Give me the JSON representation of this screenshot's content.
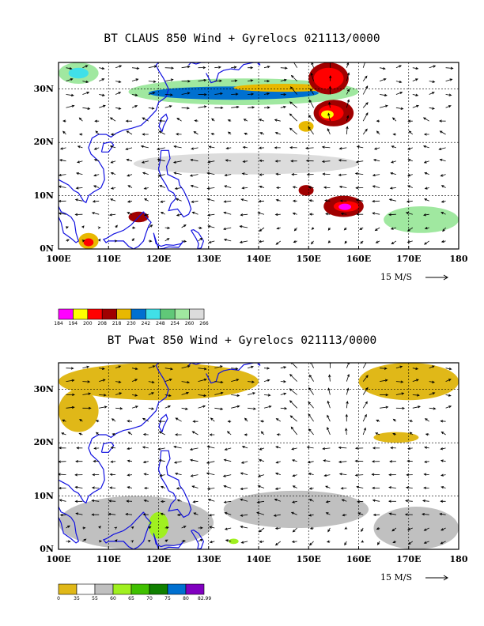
{
  "panels": [
    {
      "id": "claus",
      "title": "BT CLAUS 850 Wind + Gyrelocs 021113/0000",
      "lat_labels": [
        "30N",
        "20N",
        "10N",
        "0N"
      ],
      "lon_labels": [
        "100E",
        "110E",
        "120E",
        "130E",
        "140E",
        "150E",
        "160E",
        "170E",
        "180"
      ],
      "vector_ref": "15 M/S",
      "colorbar": {
        "colors": [
          "#ff00ff",
          "#ffff00",
          "#ff0000",
          "#a00000",
          "#e8b800",
          "#0070d0",
          "#40e0e8",
          "#60c878",
          "#a0e8a0",
          "#dcdcdc"
        ],
        "labels": [
          "184",
          "194",
          "200",
          "208",
          "218",
          "230",
          "242",
          "248",
          "254",
          "260",
          "266"
        ]
      }
    },
    {
      "id": "pwat",
      "title": "BT Pwat 850 Wind + Gyrelocs 021113/0000",
      "lat_labels": [
        "30N",
        "20N",
        "10N",
        "0N"
      ],
      "lon_labels": [
        "100E",
        "110E",
        "120E",
        "130E",
        "140E",
        "150E",
        "160E",
        "170E",
        "180"
      ],
      "vector_ref": "15 M/S",
      "colorbar": {
        "colors": [
          "#e0b818",
          "#ffffff",
          "#c0c0c0",
          "#a0f020",
          "#40c000",
          "#108000",
          "#0070d0",
          "#8000c0"
        ],
        "labels": [
          "0",
          "35",
          "55",
          "60",
          "65",
          "70",
          "75",
          "80",
          "82.99"
        ]
      }
    }
  ]
}
